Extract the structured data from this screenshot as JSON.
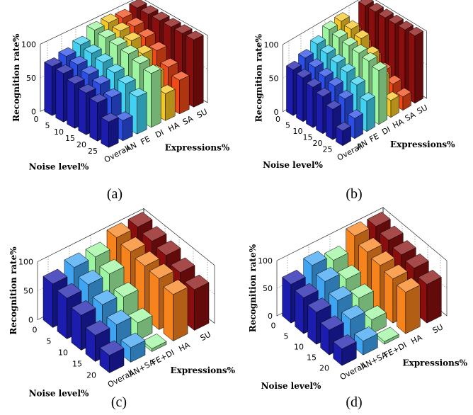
{
  "chart_data": [
    {
      "type": "bar",
      "caption": "(a)",
      "zlabel": "Recognition rate%",
      "xlabel": "Noise level%",
      "ylabel": "Expressions%",
      "zlim": [
        0,
        100
      ],
      "zticks": [
        "0",
        "50",
        "100"
      ],
      "noise_levels": [
        "0",
        "5",
        "10",
        "15",
        "20",
        "25"
      ],
      "expressions": [
        "Overall",
        "AN",
        "FE",
        "DI",
        "HA",
        "SA",
        "SU"
      ],
      "colors": [
        "#1c1cae",
        "#2a4ee6",
        "#3fd2f2",
        "#9ef5a0",
        "#f6c623",
        "#f24a16",
        "#8a0e0e"
      ],
      "series": [
        {
          "name": "Overall",
          "values": [
            73,
            72,
            66,
            62,
            57,
            38
          ]
        },
        {
          "name": "AN",
          "values": [
            78,
            75,
            70,
            65,
            55,
            30
          ]
        },
        {
          "name": "FE",
          "values": [
            85,
            82,
            78,
            72,
            65,
            55
          ]
        },
        {
          "name": "DI",
          "values": [
            97,
            95,
            93,
            90,
            85,
            80
          ]
        },
        {
          "name": "HA",
          "values": [
            98,
            95,
            90,
            80,
            60,
            40
          ]
        },
        {
          "name": "SA",
          "values": [
            95,
            92,
            85,
            75,
            60,
            50
          ]
        },
        {
          "name": "SU",
          "values": [
            100,
            100,
            100,
            100,
            100,
            100
          ]
        }
      ]
    },
    {
      "type": "bar",
      "caption": "(b)",
      "zlabel": "Recognition rate%",
      "xlabel": "Noise level%",
      "ylabel": "Expressions%",
      "zlim": [
        0,
        100
      ],
      "zticks": [
        "0",
        "50",
        "100"
      ],
      "noise_levels": [
        "0",
        "5",
        "10",
        "15",
        "20",
        "25"
      ],
      "expressions": [
        "Overall",
        "AN",
        "FE",
        "DI",
        "HA",
        "SA",
        "SU"
      ],
      "colors": [
        "#1c1cae",
        "#2a4ee6",
        "#3fd2f2",
        "#9ef5a0",
        "#f6c623",
        "#f24a16",
        "#8a0e0e"
      ],
      "series": [
        {
          "name": "Overall",
          "values": [
            68,
            65,
            60,
            55,
            45,
            22
          ]
        },
        {
          "name": "AN",
          "values": [
            75,
            70,
            65,
            60,
            50,
            30
          ]
        },
        {
          "name": "FE",
          "values": [
            85,
            80,
            75,
            70,
            60,
            45
          ]
        },
        {
          "name": "DI",
          "values": [
            96,
            93,
            90,
            88,
            85,
            80
          ]
        },
        {
          "name": "HA",
          "values": [
            98,
            95,
            90,
            75,
            50,
            25
          ]
        },
        {
          "name": "SA",
          "values": [
            70,
            60,
            50,
            40,
            30,
            20
          ]
        },
        {
          "name": "SU",
          "values": [
            100,
            100,
            100,
            100,
            100,
            100
          ]
        }
      ]
    },
    {
      "type": "bar",
      "caption": "(c)",
      "zlabel": "Recognition rate%",
      "xlabel": "Noise level%",
      "ylabel": "Expressions%",
      "zlim": [
        0,
        100
      ],
      "zticks": [
        "0",
        "50",
        "100"
      ],
      "noise_levels": [
        "0",
        "5",
        "10",
        "15",
        "20"
      ],
      "expressions": [
        "Overall",
        "AN+SA",
        "FE+DI",
        "HA",
        "SU"
      ],
      "colors": [
        "#1c1cae",
        "#3fa4f2",
        "#9ef5a0",
        "#f7831c",
        "#8a0e0e"
      ],
      "series": [
        {
          "name": "Overall",
          "values": [
            75,
            70,
            60,
            45,
            30
          ]
        },
        {
          "name": "AN+SA",
          "values": [
            85,
            75,
            60,
            45,
            25
          ]
        },
        {
          "name": "FE+DI",
          "values": [
            85,
            75,
            55,
            30,
            5
          ]
        },
        {
          "name": "HA",
          "values": [
            100,
            95,
            90,
            88,
            80
          ]
        },
        {
          "name": "SU",
          "values": [
            100,
            95,
            90,
            80,
            70
          ]
        }
      ]
    },
    {
      "type": "bar",
      "caption": "(d)",
      "zlabel": "Recognition rate%",
      "xlabel": "Noise level%",
      "ylabel": "Expressions%",
      "zlim": [
        0,
        100
      ],
      "zticks": [
        "0",
        "50",
        "100"
      ],
      "noise_levels": [
        "0",
        "5",
        "10",
        "15",
        "20"
      ],
      "expressions": [
        "Overall",
        "AN+SA",
        "FE+DI",
        "HA",
        "SU"
      ],
      "colors": [
        "#1c1cae",
        "#3fa4f2",
        "#9ef5a0",
        "#f7831c",
        "#8a0e0e"
      ],
      "series": [
        {
          "name": "Overall",
          "values": [
            70,
            65,
            58,
            45,
            30
          ]
        },
        {
          "name": "AN+SA",
          "values": [
            85,
            75,
            60,
            45,
            25
          ]
        },
        {
          "name": "FE+DI",
          "values": [
            75,
            60,
            45,
            25,
            5
          ]
        },
        {
          "name": "HA",
          "values": [
            100,
            90,
            85,
            80,
            75
          ]
        },
        {
          "name": "SU",
          "values": [
            98,
            92,
            85,
            80,
            70
          ]
        }
      ]
    }
  ]
}
